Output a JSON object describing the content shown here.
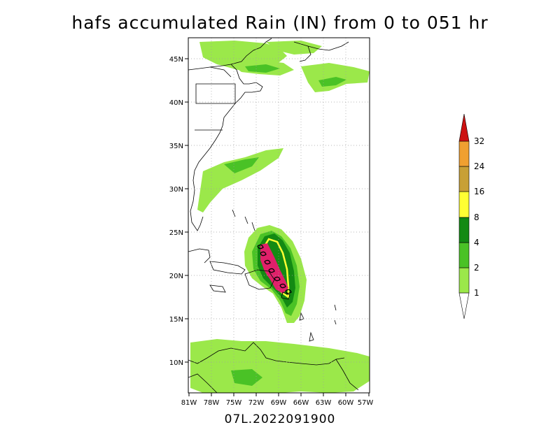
{
  "title": "hafs accumulated Rain (IN) from 0 to 051 hr",
  "footer": "07L.2022091900",
  "map": {
    "lon_range": [
      -81,
      -57
    ],
    "lat_range": [
      6.5,
      47.5
    ],
    "lon_ticks": [
      "81W",
      "78W",
      "75W",
      "72W",
      "69W",
      "66W",
      "63W",
      "60W",
      "57W"
    ],
    "lat_ticks": [
      "45N",
      "40N",
      "35N",
      "30N",
      "25N",
      "20N",
      "15N",
      "10N"
    ],
    "grid": true,
    "region": "Western Atlantic / Caribbean"
  },
  "colorbar": {
    "labels": [
      "1",
      "2",
      "4",
      "8",
      "16",
      "24",
      "32"
    ],
    "colors": [
      "#9be84a",
      "#4ac226",
      "#138a13",
      "#ffff33",
      "#c8a036",
      "#f0a030",
      "#cc1111"
    ],
    "position": "right",
    "extend": "both"
  }
}
